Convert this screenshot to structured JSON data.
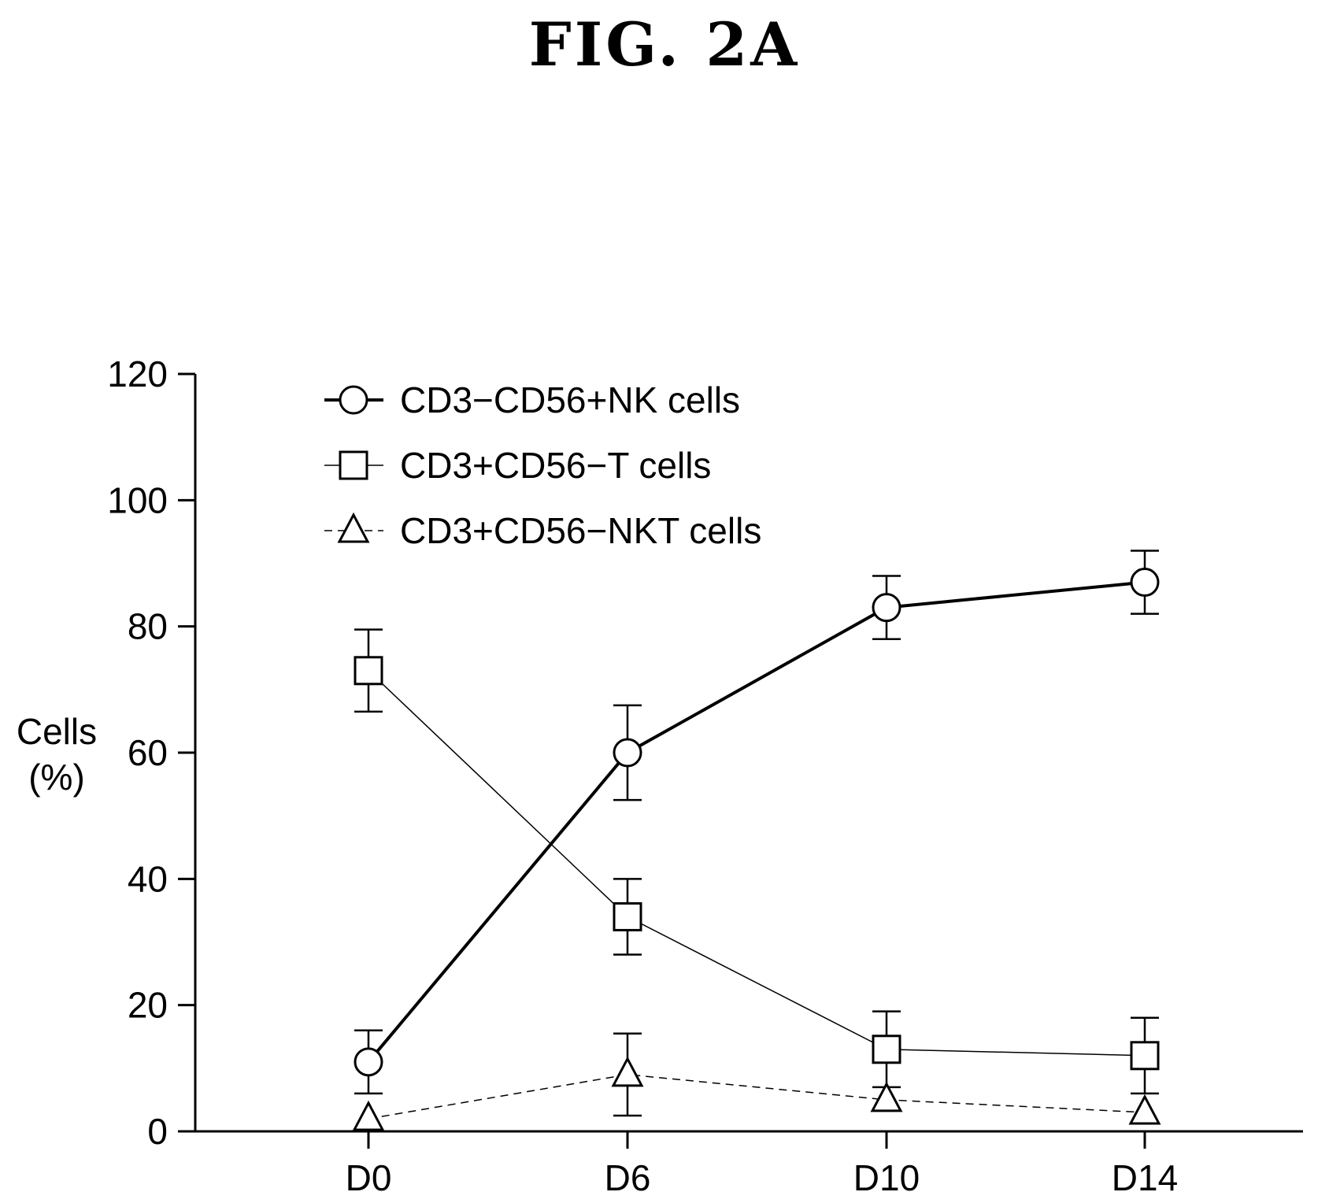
{
  "figure": {
    "label": "FIG. 2A"
  },
  "chart_data": {
    "type": "line",
    "categories": [
      "D0",
      "D6",
      "D10",
      "D14"
    ],
    "ylabel_lines": [
      "Cells",
      "(%)"
    ],
    "ylim": [
      0,
      120
    ],
    "yticks": [
      0,
      20,
      40,
      60,
      80,
      100,
      120
    ],
    "grid": false,
    "legend_placement": "top-left",
    "series": [
      {
        "name": "CD3−CD56+NK cells",
        "marker": "circle",
        "line_style": "solid-thick",
        "values": [
          11,
          60,
          83,
          87
        ],
        "errors": [
          5,
          7.5,
          5,
          5
        ]
      },
      {
        "name": "CD3+CD56−T cells",
        "marker": "square",
        "line_style": "solid-thin",
        "values": [
          73,
          34,
          13,
          12
        ],
        "errors": [
          6.5,
          6,
          6,
          6
        ]
      },
      {
        "name": "CD3+CD56−NKT cells",
        "marker": "triangle",
        "line_style": "dashed",
        "values": [
          2,
          9,
          5,
          3
        ],
        "errors": [
          0,
          6.5,
          0,
          0
        ]
      }
    ]
  }
}
